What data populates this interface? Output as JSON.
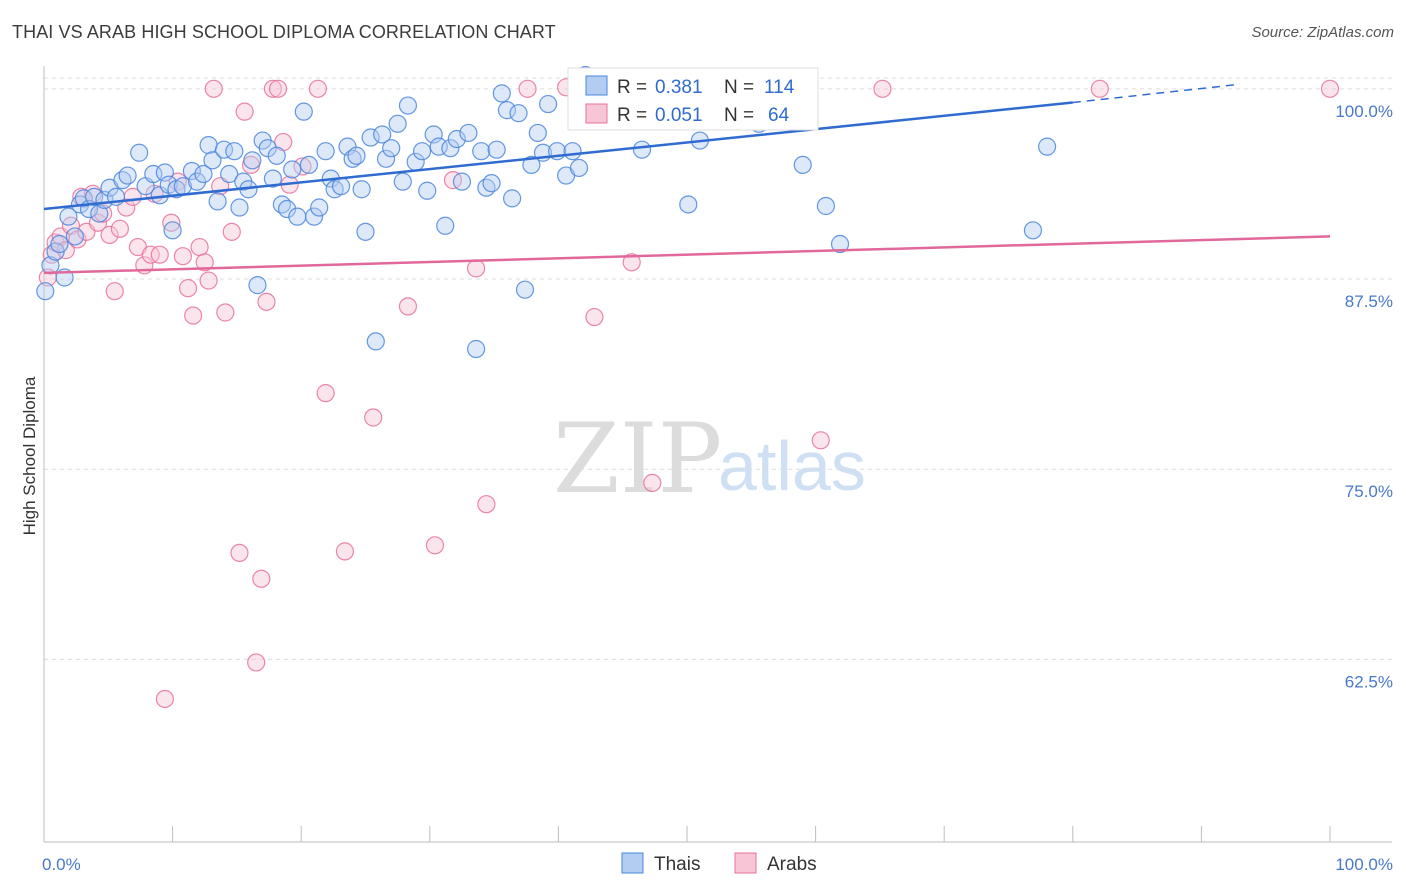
{
  "title": "THAI VS ARAB HIGH SCHOOL DIPLOMA CORRELATION CHART",
  "source": "Source: ZipAtlas.com",
  "watermark": {
    "zip": "ZIP",
    "atlas": "atlas"
  },
  "colors": {
    "thais": "#4a86dd",
    "thais_fill": "#b3cdf2",
    "arabs": "#e8719a",
    "arabs_fill": "#f7c6d6",
    "tick_text": "#4a78c9",
    "grid": "#dcdcdc"
  },
  "legend": {
    "r_label": "R =",
    "n_label": "N =",
    "thais": {
      "r": "0.381",
      "n": "114"
    },
    "arabs": {
      "r": "0.051",
      "n": "64"
    }
  },
  "chart_data": {
    "type": "scatter",
    "title": "THAI VS ARAB HIGH SCHOOL DIPLOMA CORRELATION CHART",
    "ylabel": "High School Diploma",
    "xlabel": "",
    "xlim": [
      0,
      100
    ],
    "ylim": [
      50.5,
      101.5
    ],
    "x_tick_labels": [
      "0.0%",
      "100.0%"
    ],
    "y_ticks": [
      {
        "value": 100.0,
        "label": "100.0%"
      },
      {
        "value": 87.5,
        "label": "87.5%"
      },
      {
        "value": 75.0,
        "label": "75.0%"
      },
      {
        "value": 62.5,
        "label": "62.5%"
      }
    ],
    "grid": true,
    "legend_position": "top-center",
    "bottom_legend": [
      "Thais",
      "Arabs"
    ],
    "series": [
      {
        "name": "Thais",
        "trend": {
          "x": [
            0,
            80,
            93
          ],
          "y": [
            92.1,
            99.1,
            100.3
          ],
          "dashed_from": 80
        },
        "points": [
          [
            0.1,
            86.7
          ],
          [
            0.5,
            88.4
          ],
          [
            0.9,
            89.3
          ],
          [
            1.2,
            89.8
          ],
          [
            1.6,
            87.6
          ],
          [
            1.9,
            91.6
          ],
          [
            2.4,
            90.3
          ],
          [
            2.8,
            92.4
          ],
          [
            3.1,
            92.8
          ],
          [
            3.5,
            92.1
          ],
          [
            3.9,
            92.9
          ],
          [
            4.3,
            91.8
          ],
          [
            4.7,
            92.7
          ],
          [
            5.1,
            93.5
          ],
          [
            5.6,
            92.9
          ],
          [
            6.1,
            94.0
          ],
          [
            6.5,
            94.3
          ],
          [
            7.4,
            95.8
          ],
          [
            7.9,
            93.6
          ],
          [
            8.5,
            94.4
          ],
          [
            9.0,
            93.0
          ],
          [
            9.4,
            94.5
          ],
          [
            9.7,
            93.7
          ],
          [
            10.0,
            90.7
          ],
          [
            10.3,
            93.4
          ],
          [
            10.8,
            93.6
          ],
          [
            11.5,
            94.6
          ],
          [
            11.9,
            93.9
          ],
          [
            12.4,
            94.4
          ],
          [
            12.8,
            96.3
          ],
          [
            13.1,
            95.3
          ],
          [
            13.5,
            92.6
          ],
          [
            14.0,
            96.0
          ],
          [
            14.4,
            94.4
          ],
          [
            14.8,
            95.9
          ],
          [
            15.2,
            92.2
          ],
          [
            15.5,
            93.9
          ],
          [
            15.9,
            93.4
          ],
          [
            16.2,
            95.3
          ],
          [
            16.6,
            87.1
          ],
          [
            17.0,
            96.6
          ],
          [
            17.4,
            96.1
          ],
          [
            17.8,
            94.1
          ],
          [
            18.1,
            95.6
          ],
          [
            18.5,
            92.4
          ],
          [
            18.9,
            92.1
          ],
          [
            19.3,
            94.7
          ],
          [
            19.7,
            91.6
          ],
          [
            20.2,
            98.5
          ],
          [
            20.6,
            95.0
          ],
          [
            21.0,
            91.6
          ],
          [
            21.4,
            92.2
          ],
          [
            21.9,
            95.9
          ],
          [
            22.3,
            94.1
          ],
          [
            22.6,
            93.4
          ],
          [
            23.1,
            93.6
          ],
          [
            23.6,
            96.2
          ],
          [
            24.0,
            95.4
          ],
          [
            24.3,
            95.6
          ],
          [
            24.7,
            93.4
          ],
          [
            25.0,
            90.6
          ],
          [
            25.4,
            96.8
          ],
          [
            25.8,
            83.4
          ],
          [
            26.3,
            97.0
          ],
          [
            26.6,
            95.4
          ],
          [
            27.0,
            96.1
          ],
          [
            27.5,
            97.7
          ],
          [
            27.9,
            93.9
          ],
          [
            28.3,
            98.9
          ],
          [
            28.9,
            95.2
          ],
          [
            29.4,
            95.9
          ],
          [
            29.8,
            93.3
          ],
          [
            30.3,
            97.0
          ],
          [
            30.7,
            96.2
          ],
          [
            31.2,
            91.0
          ],
          [
            31.6,
            96.1
          ],
          [
            32.1,
            96.7
          ],
          [
            32.5,
            93.9
          ],
          [
            33.0,
            97.1
          ],
          [
            33.6,
            82.9
          ],
          [
            34.0,
            95.9
          ],
          [
            34.4,
            93.5
          ],
          [
            34.8,
            93.8
          ],
          [
            35.2,
            96.0
          ],
          [
            35.6,
            99.7
          ],
          [
            36.0,
            98.6
          ],
          [
            36.4,
            92.8
          ],
          [
            36.9,
            98.4
          ],
          [
            37.4,
            86.8
          ],
          [
            37.9,
            95.0
          ],
          [
            38.4,
            97.1
          ],
          [
            38.8,
            95.8
          ],
          [
            39.2,
            99.0
          ],
          [
            39.9,
            95.9
          ],
          [
            40.6,
            94.3
          ],
          [
            41.1,
            95.9
          ],
          [
            41.6,
            94.8
          ],
          [
            42.1,
            100.9
          ],
          [
            43.5,
            100.3
          ],
          [
            44.3,
            100.7
          ],
          [
            46.5,
            96.0
          ],
          [
            46.9,
            100.1
          ],
          [
            50.1,
            92.4
          ],
          [
            51.0,
            96.6
          ],
          [
            51.4,
            99.2
          ],
          [
            52.0,
            98.5
          ],
          [
            53.4,
            100.2
          ],
          [
            55.6,
            97.7
          ],
          [
            57.5,
            99.2
          ],
          [
            59.0,
            95.0
          ],
          [
            60.8,
            92.3
          ],
          [
            61.9,
            89.8
          ],
          [
            76.9,
            90.7
          ],
          [
            78.0,
            96.2
          ]
        ]
      },
      {
        "name": "Arabs",
        "trend": {
          "x": [
            0,
            100
          ],
          "y": [
            87.9,
            90.3
          ]
        },
        "points": [
          [
            0.3,
            87.6
          ],
          [
            0.6,
            89.1
          ],
          [
            0.9,
            89.9
          ],
          [
            1.3,
            90.3
          ],
          [
            1.7,
            89.4
          ],
          [
            2.1,
            91.0
          ],
          [
            2.6,
            90.1
          ],
          [
            2.9,
            92.9
          ],
          [
            3.3,
            90.6
          ],
          [
            3.8,
            93.1
          ],
          [
            4.2,
            91.2
          ],
          [
            4.6,
            91.8
          ],
          [
            5.1,
            90.4
          ],
          [
            5.5,
            86.7
          ],
          [
            5.9,
            90.8
          ],
          [
            6.4,
            92.2
          ],
          [
            6.9,
            92.9
          ],
          [
            7.3,
            89.6
          ],
          [
            7.8,
            88.4
          ],
          [
            8.3,
            89.1
          ],
          [
            8.6,
            93.1
          ],
          [
            9.0,
            89.1
          ],
          [
            9.4,
            59.9
          ],
          [
            9.9,
            91.2
          ],
          [
            10.4,
            93.9
          ],
          [
            10.8,
            89.0
          ],
          [
            11.2,
            86.9
          ],
          [
            11.6,
            85.1
          ],
          [
            12.1,
            89.6
          ],
          [
            12.5,
            88.6
          ],
          [
            12.8,
            87.4
          ],
          [
            13.2,
            100.0
          ],
          [
            13.7,
            93.6
          ],
          [
            14.1,
            85.3
          ],
          [
            14.6,
            90.6
          ],
          [
            15.2,
            69.5
          ],
          [
            15.6,
            98.5
          ],
          [
            16.1,
            95.0
          ],
          [
            16.5,
            62.3
          ],
          [
            16.9,
            67.8
          ],
          [
            17.3,
            86.0
          ],
          [
            17.8,
            100.0
          ],
          [
            18.2,
            100.0
          ],
          [
            18.6,
            96.5
          ],
          [
            19.1,
            93.7
          ],
          [
            20.1,
            94.9
          ],
          [
            21.3,
            100.0
          ],
          [
            21.9,
            80.0
          ],
          [
            23.4,
            69.6
          ],
          [
            25.6,
            78.4
          ],
          [
            28.3,
            85.7
          ],
          [
            30.4,
            70.0
          ],
          [
            31.8,
            94.0
          ],
          [
            33.6,
            88.2
          ],
          [
            34.4,
            72.7
          ],
          [
            37.6,
            100.0
          ],
          [
            40.6,
            100.1
          ],
          [
            42.8,
            85.0
          ],
          [
            45.7,
            88.6
          ],
          [
            47.3,
            74.1
          ],
          [
            60.4,
            76.9
          ],
          [
            65.2,
            100.0
          ],
          [
            82.1,
            100.0
          ],
          [
            100.0,
            100.0
          ]
        ]
      }
    ]
  }
}
